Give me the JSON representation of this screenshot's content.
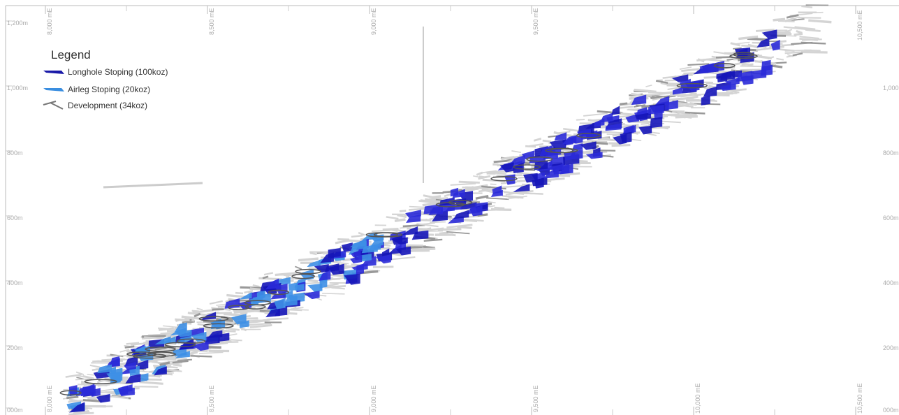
{
  "legend": {
    "title": "Legend",
    "items": [
      "Longhole Stoping (100koz)",
      "Airleg Stoping (20koz)",
      "Development (34koz)"
    ]
  },
  "elevation_left": [
    "1,200m",
    "1,000m",
    "800m",
    "600m",
    "400m",
    "200m",
    "000m"
  ],
  "elevation_right": [
    "1,000m",
    "800m",
    "600m",
    "400m",
    "200m",
    "000m"
  ],
  "easting_top": [
    "8,000 mE",
    "8,500 mE",
    "9,000 mE",
    "9,500 mE",
    "10,500 mE"
  ],
  "easting_bottom": [
    "8,000 mE",
    "8,500 mE",
    "9,000 mE",
    "9,500 mE",
    "10,000 mE",
    "10,500 mE"
  ]
}
